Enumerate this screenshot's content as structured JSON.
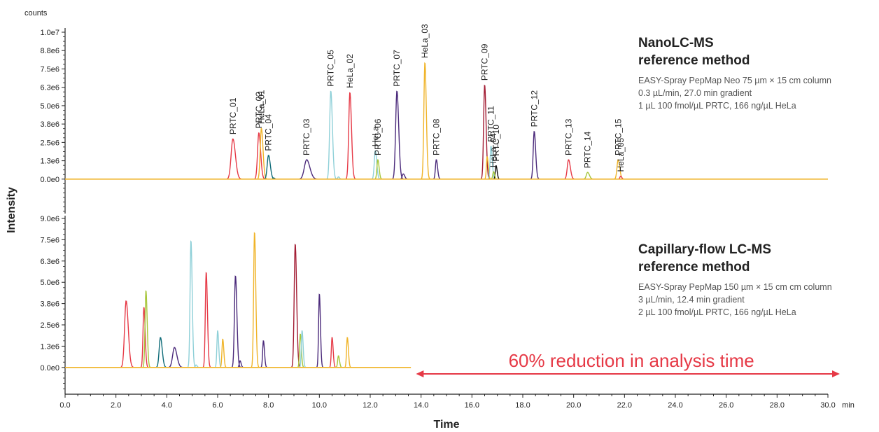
{
  "chart_data": [
    {
      "type": "line",
      "name": "nanolc",
      "title": "NanoLC-MS",
      "title2": "reference method",
      "description": [
        "EASY-Spray PepMap Neo 75 µm × 15 cm column",
        "0.3 µL/min, 27.0 min gradient",
        "1 µL 100 fmol/µL PRTC, 166 ng/µL HeLa"
      ],
      "y_unit_label": "counts",
      "y_ticks": [
        "1.0e7",
        "8.8e6",
        "7.5e6",
        "6.3e6",
        "5.0e6",
        "3.8e6",
        "2.5e6",
        "1.3e6",
        "0.0e0"
      ],
      "y_top_value": 10000000,
      "y_bottom_value": -2300000,
      "x_start": 0,
      "x_end": 30,
      "peaks": [
        {
          "label": "PRTC_01",
          "t": 6.6,
          "h": 2700000,
          "w": 0.07,
          "color": "#e63946"
        },
        {
          "label": "PRTC_02",
          "t": 7.62,
          "h": 3100000,
          "w": 0.05,
          "color": "#e63946"
        },
        {
          "label": "HeLa_01",
          "t": 7.72,
          "h": 3400000,
          "w": 0.045,
          "color": "#f0b429"
        },
        {
          "label": "PRTC_04",
          "t": 8.0,
          "h": 1600000,
          "w": 0.05,
          "color": "#0e6b78"
        },
        {
          "label": "",
          "t": 8.2,
          "h": 80000,
          "w": 0.03,
          "color": "#0e6b78"
        },
        {
          "label": "PRTC_03",
          "t": 9.5,
          "h": 1300000,
          "w": 0.09,
          "color": "#4b2a7b"
        },
        {
          "label": "PRTC_05",
          "t": 10.45,
          "h": 5900000,
          "w": 0.045,
          "color": "#8fd0d8"
        },
        {
          "label": "",
          "t": 10.75,
          "h": 150000,
          "w": 0.03,
          "color": "#8fd0d8"
        },
        {
          "label": "HeLa_02",
          "t": 11.2,
          "h": 5800000,
          "w": 0.045,
          "color": "#e63946"
        },
        {
          "label": "HeLa",
          "t": 12.2,
          "h": 1900000,
          "w": 0.04,
          "color": "#8fd0d8"
        },
        {
          "label": "PRTC_06",
          "t": 12.3,
          "h": 1300000,
          "w": 0.035,
          "color": "#a7c63a"
        },
        {
          "label": "PRTC_07",
          "t": 13.05,
          "h": 5900000,
          "w": 0.05,
          "color": "#4b2a7b"
        },
        {
          "label": "",
          "t": 13.3,
          "h": 350000,
          "w": 0.04,
          "color": "#4b2a7b"
        },
        {
          "label": "HeLa_03",
          "t": 14.15,
          "h": 7800000,
          "w": 0.04,
          "color": "#f0b429"
        },
        {
          "label": "PRTC_08",
          "t": 14.6,
          "h": 1300000,
          "w": 0.035,
          "color": "#4b2a7b"
        },
        {
          "label": "PRTC_09",
          "t": 16.5,
          "h": 6300000,
          "w": 0.04,
          "color": "#a31d34"
        },
        {
          "label": "",
          "t": 16.6,
          "h": 1500000,
          "w": 0.03,
          "color": "#f0b429"
        },
        {
          "label": "PRTC_11",
          "t": 16.75,
          "h": 2200000,
          "w": 0.035,
          "color": "#8fd0d8"
        },
        {
          "label": "PRTC_10",
          "t": 16.95,
          "h": 900000,
          "w": 0.03,
          "color": "#111111"
        },
        {
          "label": "HeLa_04",
          "t": 16.85,
          "h": 500000,
          "w": 0.03,
          "color": "#a7c63a"
        },
        {
          "label": "PRTC_12",
          "t": 18.45,
          "h": 3200000,
          "w": 0.04,
          "color": "#4b2a7b"
        },
        {
          "label": "PRTC_13",
          "t": 19.8,
          "h": 1300000,
          "w": 0.05,
          "color": "#e63946"
        },
        {
          "label": "PRTC_14",
          "t": 20.55,
          "h": 450000,
          "w": 0.05,
          "color": "#a7c63a"
        },
        {
          "label": "PRTC_15",
          "t": 21.75,
          "h": 1300000,
          "w": 0.045,
          "color": "#f0b429"
        },
        {
          "label": "HeLa_05",
          "t": 21.85,
          "h": 200000,
          "w": 0.03,
          "color": "#e63946"
        }
      ]
    },
    {
      "type": "line",
      "name": "capillary",
      "title": "Capillary-flow LC-MS",
      "title2": "reference method",
      "description": [
        "EASY-Spray PepMap 150 µm × 15 cm cm column",
        "3 µL/min, 12.4 min gradient",
        "2 µL 100 fmol/µL PRTC, 166 ng/µL HeLa"
      ],
      "y_ticks": [
        "9.0e6",
        "7.5e6",
        "6.3e6",
        "5.0e6",
        "3.8e6",
        "2.5e6",
        "1.3e6",
        "0.0e0"
      ],
      "y_top_value": 9000000,
      "y_bottom_value": -1600000,
      "x_start": 0,
      "x_end": 13.6,
      "peaks": [
        {
          "label": "",
          "t": 2.4,
          "h": 4000000,
          "w": 0.06,
          "color": "#e63946"
        },
        {
          "label": "",
          "t": 3.1,
          "h": 3600000,
          "w": 0.035,
          "color": "#e63946"
        },
        {
          "label": "",
          "t": 3.18,
          "h": 4600000,
          "w": 0.035,
          "color": "#a7c63a"
        },
        {
          "label": "",
          "t": 3.75,
          "h": 1800000,
          "w": 0.05,
          "color": "#0e6b78"
        },
        {
          "label": "",
          "t": 4.3,
          "h": 1200000,
          "w": 0.07,
          "color": "#4b2a7b"
        },
        {
          "label": "",
          "t": 4.95,
          "h": 7600000,
          "w": 0.035,
          "color": "#8fd0d8"
        },
        {
          "label": "",
          "t": 5.15,
          "h": 150000,
          "w": 0.03,
          "color": "#8fd0d8"
        },
        {
          "label": "",
          "t": 5.55,
          "h": 5700000,
          "w": 0.035,
          "color": "#e63946"
        },
        {
          "label": "",
          "t": 6.0,
          "h": 2200000,
          "w": 0.03,
          "color": "#8fd0d8"
        },
        {
          "label": "",
          "t": 6.2,
          "h": 1700000,
          "w": 0.03,
          "color": "#f0b429"
        },
        {
          "label": "",
          "t": 6.7,
          "h": 5500000,
          "w": 0.04,
          "color": "#4b2a7b"
        },
        {
          "label": "",
          "t": 6.88,
          "h": 400000,
          "w": 0.03,
          "color": "#4b2a7b"
        },
        {
          "label": "",
          "t": 7.45,
          "h": 8100000,
          "w": 0.035,
          "color": "#f0b429"
        },
        {
          "label": "",
          "t": 7.8,
          "h": 1600000,
          "w": 0.03,
          "color": "#4b2a7b"
        },
        {
          "label": "",
          "t": 9.05,
          "h": 7400000,
          "w": 0.04,
          "color": "#a31d34"
        },
        {
          "label": "",
          "t": 9.25,
          "h": 2000000,
          "w": 0.03,
          "color": "#a7c63a"
        },
        {
          "label": "",
          "t": 9.32,
          "h": 2200000,
          "w": 0.03,
          "color": "#8fd0d8"
        },
        {
          "label": "",
          "t": 10.0,
          "h": 4400000,
          "w": 0.03,
          "color": "#4b2a7b"
        },
        {
          "label": "",
          "t": 10.5,
          "h": 1800000,
          "w": 0.03,
          "color": "#e63946"
        },
        {
          "label": "",
          "t": 10.75,
          "h": 700000,
          "w": 0.03,
          "color": "#a7c63a"
        },
        {
          "label": "",
          "t": 11.1,
          "h": 1800000,
          "w": 0.03,
          "color": "#f0b429"
        }
      ]
    }
  ],
  "x_axis": {
    "label": "Time",
    "unit": "min",
    "min": 0,
    "max": 30,
    "ticks": [
      "0.0",
      "2.0",
      "4.0",
      "6.0",
      "8.0",
      "10.0",
      "12.0",
      "14.0",
      "16.0",
      "18.0",
      "20.0",
      "22.0",
      "24.0",
      "26.0",
      "28.0",
      "30.0"
    ]
  },
  "y_axis": {
    "label": "Intensity"
  },
  "annotation": {
    "text": "60% reduction in analysis time",
    "from": 13.8,
    "to": 30,
    "color": "#e63946"
  },
  "colors": {
    "baseline": "#f0b429",
    "axis": "#222222"
  }
}
